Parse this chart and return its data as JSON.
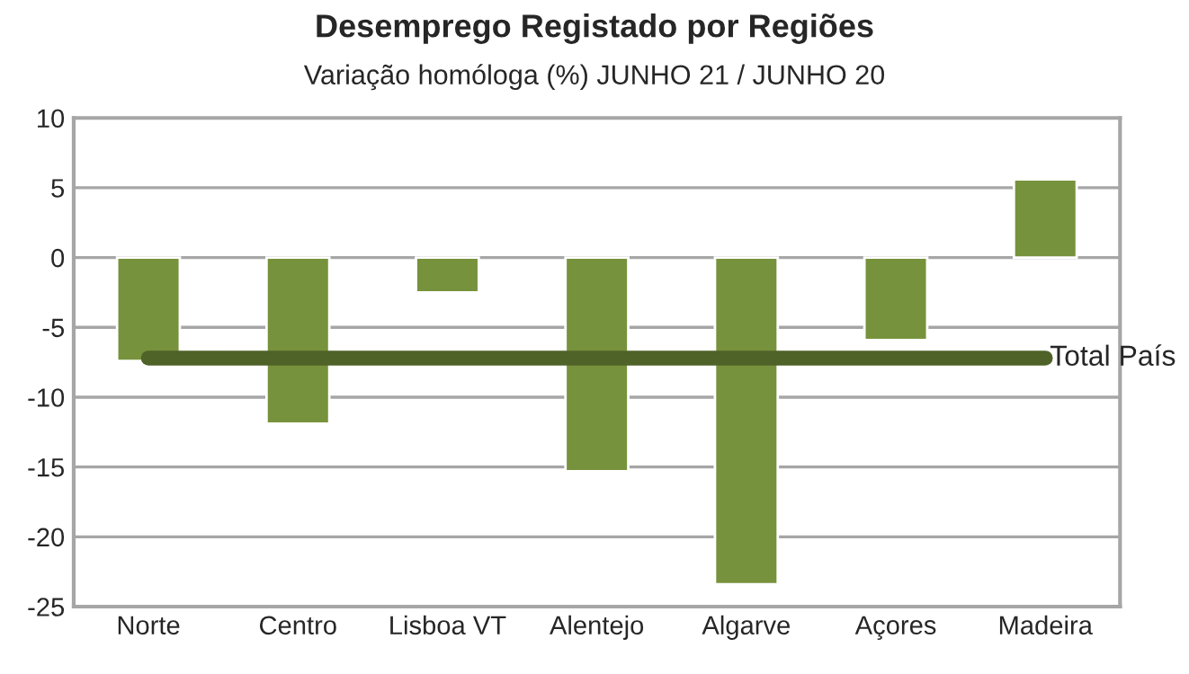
{
  "chart_data": {
    "type": "bar",
    "title": "Desemprego Registado por Regiões",
    "subtitle": "Variação homóloga (%) JUNHO 21 / JUNHO 20",
    "categories": [
      "Norte",
      "Centro",
      "Lisboa VT",
      "Alentejo",
      "Algarve",
      "Açores",
      "Madeira"
    ],
    "series": [
      {
        "color": "#77923c",
        "values": [
          -7.4,
          -11.9,
          -2.5,
          -15.3,
          -23.4,
          -5.9,
          5.6
        ]
      },
      {
        "type": "line",
        "name": "Total País",
        "color": "#4f6228",
        "values": [
          -7.2,
          -7.2,
          -7.2,
          -7.2,
          -7.2,
          -7.2,
          -7.2
        ]
      }
    ],
    "ylim": [
      -25,
      10
    ],
    "yticks": [
      -25,
      -20,
      -15,
      -10,
      -5,
      0,
      5,
      10
    ],
    "grid": "y",
    "legend": false,
    "marker": "none"
  }
}
